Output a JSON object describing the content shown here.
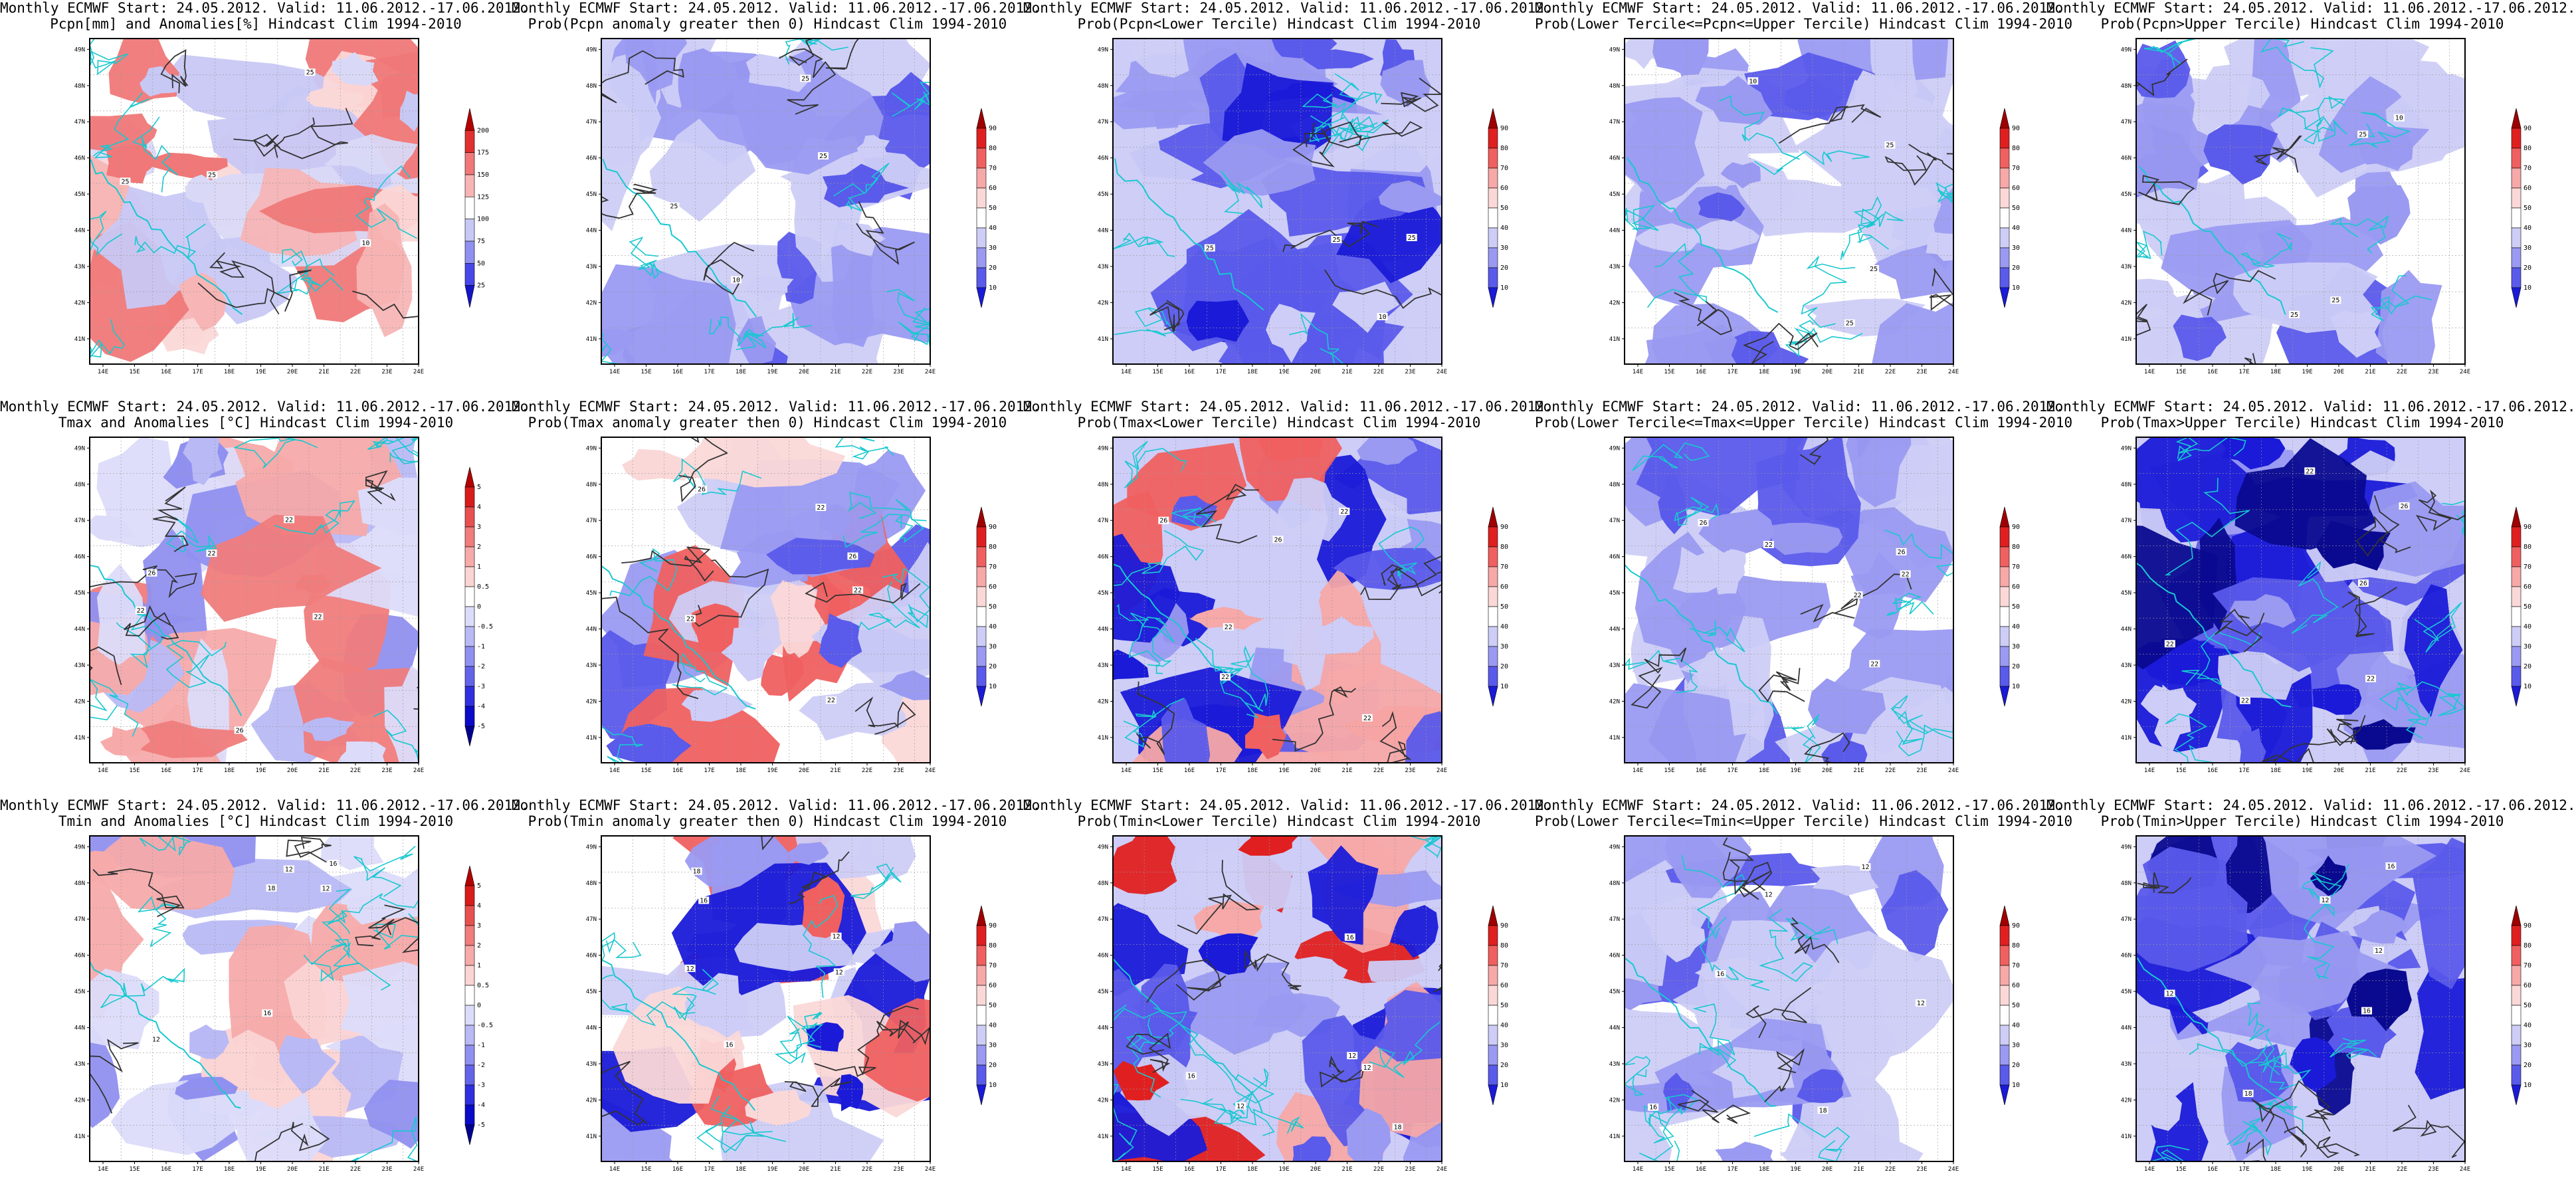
{
  "rows": [
    {
      "panels": [
        {
          "title1": "Monthly ECMWF Start: 24.05.2012. Valid: 11.06.2012.-17.06.2012.",
          "title2": "Pcpn[mm] and Anomalies[%] Hindcast Clim 1994-2010",
          "scale": "pcpn_anom",
          "pattern": 1
        },
        {
          "title1": "Monthly ECMWF Start: 24.05.2012. Valid: 11.06.2012.-17.06.2012.",
          "title2": "Prob(Pcpn anomaly greater then 0) Hindcast Clim 1994-2010",
          "scale": "prob",
          "pattern": 2
        },
        {
          "title1": "Monthly ECMWF Start: 24.05.2012. Valid: 11.06.2012.-17.06.2012.",
          "title2": "Prob(Pcpn<Lower Tercile) Hindcast Clim 1994-2010",
          "scale": "prob",
          "pattern": 3
        },
        {
          "title1": "Monthly ECMWF Start: 24.05.2012. Valid: 11.06.2012.-17.06.2012.",
          "title2": "Prob(Lower Tercile<=Pcpn<=Upper Tercile) Hindcast Clim 1994-2010",
          "scale": "prob",
          "pattern": 4
        },
        {
          "title1": "Monthly ECMWF Start: 24.05.2012. Valid: 11.06.2012.-17.06.2012.",
          "title2": "Prob(Pcpn>Upper Tercile) Hindcast Clim 1994-2010",
          "scale": "prob",
          "pattern": 5
        }
      ]
    },
    {
      "panels": [
        {
          "title1": "Monthly ECMWF Start: 24.05.2012. Valid: 11.06.2012.-17.06.2012.",
          "title2": "Tmax and Anomalies [°C] Hindcast Clim 1994-2010",
          "scale": "temp_anom",
          "pattern": 6
        },
        {
          "title1": "Monthly ECMWF Start: 24.05.2012. Valid: 11.06.2012.-17.06.2012.",
          "title2": "Prob(Tmax anomaly greater then 0) Hindcast Clim 1994-2010",
          "scale": "prob",
          "pattern": 7
        },
        {
          "title1": "Monthly ECMWF Start: 24.05.2012. Valid: 11.06.2012.-17.06.2012.",
          "title2": "Prob(Tmax<Lower Tercile) Hindcast Clim 1994-2010",
          "scale": "prob",
          "pattern": 8
        },
        {
          "title1": "Monthly ECMWF Start: 24.05.2012. Valid: 11.06.2012.-17.06.2012.",
          "title2": "Prob(Lower Tercile<=Tmax<=Upper Tercile) Hindcast Clim 1994-2010",
          "scale": "prob",
          "pattern": 9
        },
        {
          "title1": "Monthly ECMWF Start: 24.05.2012. Valid: 11.06.2012.-17.06.2012.",
          "title2": "Prob(Tmax>Upper Tercile) Hindcast Clim 1994-2010",
          "scale": "prob",
          "pattern": 10
        }
      ]
    },
    {
      "panels": [
        {
          "title1": "Monthly ECMWF Start: 24.05.2012. Valid: 11.06.2012.-17.06.2012.",
          "title2": "Tmin and Anomalies [°C] Hindcast Clim 1994-2010",
          "scale": "temp_anom",
          "pattern": 11
        },
        {
          "title1": "Monthly ECMWF Start: 24.05.2012. Valid: 11.06.2012.-17.06.2012.",
          "title2": "Prob(Tmin anomaly greater then 0) Hindcast Clim 1994-2010",
          "scale": "prob",
          "pattern": 12
        },
        {
          "title1": "Monthly ECMWF Start: 24.05.2012. Valid: 11.06.2012.-17.06.2012.",
          "title2": "Prob(Tmin<Lower Tercile) Hindcast Clim 1994-2010",
          "scale": "prob",
          "pattern": 13
        },
        {
          "title1": "Monthly ECMWF Start: 24.05.2012. Valid: 11.06.2012.-17.06.2012.",
          "title2": "Prob(Lower Tercile<=Tmin<=Upper Tercile) Hindcast Clim 1994-2010",
          "scale": "prob",
          "pattern": 14
        },
        {
          "title1": "Monthly ECMWF Start: 24.05.2012. Valid: 11.06.2012.-17.06.2012.",
          "title2": "Prob(Tmin>Upper Tercile) Hindcast Clim 1994-2010",
          "scale": "prob",
          "pattern": 15
        }
      ]
    }
  ],
  "axes": {
    "lat_labels": [
      "49N",
      "48N",
      "47N",
      "46N",
      "45N",
      "44N",
      "43N",
      "42N",
      "41N"
    ],
    "lon_labels": [
      "14E",
      "15E",
      "16E",
      "17E",
      "18E",
      "19E",
      "20E",
      "21E",
      "22E",
      "23E",
      "24E"
    ]
  },
  "scales": {
    "pcpn_anom": {
      "labels": [
        "200",
        "175",
        "150",
        "125",
        "100",
        "75",
        "50",
        "25"
      ],
      "colors": [
        "#b40000",
        "#e03030",
        "#f07878",
        "#f7b5b5",
        "#ffffff",
        "#c8c8f5",
        "#9090f0",
        "#4848e8",
        "#1414c8"
      ]
    },
    "prob": {
      "labels": [
        "90",
        "80",
        "70",
        "60",
        "50",
        "40",
        "30",
        "20",
        "10"
      ],
      "colors": [
        "#a00000",
        "#e02020",
        "#f06060",
        "#f7a8a8",
        "#fbd8d8",
        "#ffffff",
        "#cdcdf7",
        "#9a9af2",
        "#5a5aeb",
        "#1a1ad8"
      ]
    },
    "temp_anom": {
      "labels": [
        "5",
        "4",
        "3",
        "2",
        "1",
        "0.5",
        "0",
        "-0.5",
        "-1",
        "-2",
        "-3",
        "-4",
        "-5"
      ],
      "colors": [
        "#b40000",
        "#d81c1c",
        "#e85050",
        "#f07c7c",
        "#f7aaaa",
        "#fbd4d4",
        "#ffffff",
        "#dcdcfa",
        "#b9b9f5",
        "#9090f0",
        "#6464ea",
        "#3030e0",
        "#0a0ac8",
        "#000090"
      ]
    }
  },
  "contour_labels": {
    "pcpn": [
      "25",
      "25",
      "25",
      "10"
    ],
    "tmax": [
      "26",
      "22",
      "22",
      "22",
      "22",
      "26"
    ],
    "tmin": [
      "16",
      "12",
      "12",
      "16",
      "12",
      "18"
    ]
  }
}
